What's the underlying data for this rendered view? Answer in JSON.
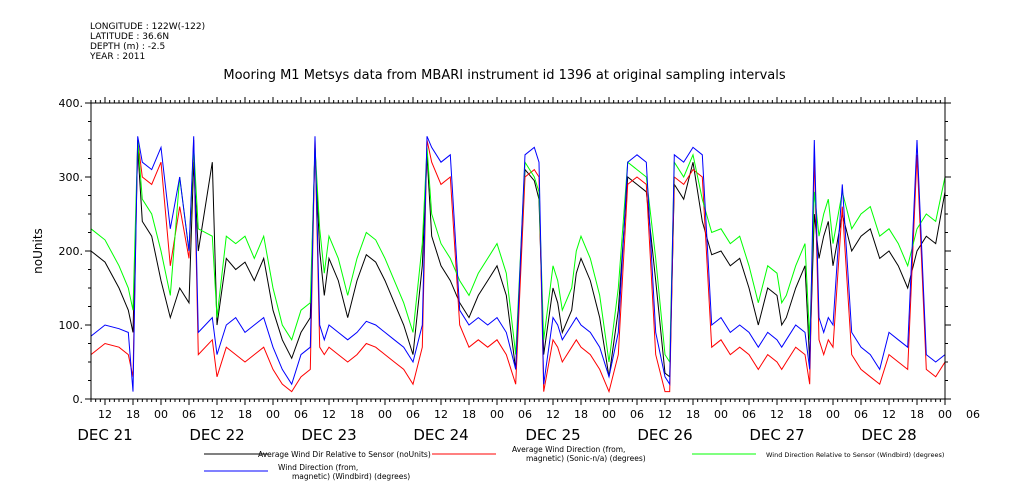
{
  "header": {
    "longitude": "LONGITUDE : 122W(-122)",
    "latitude": "LATITUDE : 36.6N",
    "depth": "DEPTH (m) : -2.5",
    "year": "YEAR : 2011"
  },
  "chart_data": {
    "type": "line",
    "title": "Mooring M1 Metsys data from MBARI instrument id 1396 at original sampling intervals",
    "ylabel": "noUnits",
    "ylim": [
      0,
      400
    ],
    "yticks": [
      "0.",
      "100.",
      "200.",
      "300.",
      "400."
    ],
    "xlim": [
      9,
      192
    ],
    "hour_tick_labels": [
      "12",
      "18",
      "00",
      "06",
      "12",
      "18",
      "00",
      "06",
      "12",
      "18",
      "00",
      "06",
      "12",
      "18",
      "00",
      "06",
      "12",
      "18",
      "00",
      "06",
      "12",
      "18",
      "00",
      "06",
      "12",
      "18",
      "00",
      "06",
      "12",
      "18",
      "00",
      "06"
    ],
    "day_labels": [
      "DEC 21",
      "DEC 22",
      "DEC 23",
      "DEC 24",
      "DEC 25",
      "DEC 26",
      "DEC 27",
      "DEC 28"
    ],
    "series": [
      {
        "name": "Average Wind Dir Relative to Sensor (noUnits)",
        "color": "#000000",
        "x": [
          9,
          12,
          15,
          17,
          18,
          19,
          20,
          22,
          24,
          26,
          28,
          30,
          31,
          32,
          35,
          36,
          38,
          40,
          42,
          44,
          46,
          48,
          50,
          52,
          54,
          56,
          57,
          58,
          59,
          60,
          62,
          64,
          66,
          68,
          70,
          72,
          74,
          76,
          78,
          80,
          81,
          82,
          84,
          86,
          88,
          90,
          92,
          94,
          96,
          98,
          100,
          102,
          104,
          105,
          106,
          108,
          109,
          110,
          112,
          113,
          114,
          116,
          118,
          120,
          122,
          124,
          126,
          128,
          130,
          132,
          133,
          134,
          136,
          138,
          140,
          142,
          144,
          146,
          148,
          150,
          152,
          154,
          156,
          157,
          158,
          160,
          162,
          163,
          164,
          165,
          166,
          167,
          168,
          170,
          172,
          174,
          176,
          178,
          180,
          182,
          184,
          186,
          188,
          190,
          192
        ],
        "y": [
          200,
          185,
          150,
          120,
          90,
          340,
          240,
          220,
          160,
          110,
          150,
          130,
          320,
          200,
          320,
          100,
          190,
          175,
          185,
          160,
          190,
          120,
          80,
          55,
          90,
          110,
          340,
          200,
          140,
          190,
          160,
          110,
          160,
          195,
          185,
          160,
          130,
          100,
          60,
          180,
          330,
          220,
          180,
          160,
          130,
          110,
          140,
          160,
          180,
          140,
          40,
          310,
          295,
          270,
          60,
          150,
          130,
          90,
          120,
          170,
          190,
          160,
          110,
          30,
          120,
          300,
          290,
          280,
          160,
          35,
          30,
          290,
          270,
          320,
          240,
          195,
          200,
          180,
          190,
          150,
          100,
          150,
          140,
          100,
          110,
          150,
          180,
          50,
          250,
          190,
          220,
          240,
          180,
          250,
          200,
          220,
          230,
          190,
          200,
          180,
          150,
          200,
          220,
          210,
          280
        ]
      },
      {
        "name": "Average Wind Direction (from, magnetic) (Sonic-n/a) (degrees)",
        "color": "#ff0000",
        "x": [
          9,
          12,
          15,
          17,
          18,
          19,
          20,
          22,
          24,
          26,
          28,
          30,
          31,
          32,
          35,
          36,
          38,
          40,
          42,
          44,
          46,
          48,
          50,
          52,
          54,
          56,
          57,
          58,
          59,
          60,
          62,
          64,
          66,
          68,
          70,
          72,
          74,
          76,
          78,
          80,
          81,
          82,
          84,
          86,
          88,
          90,
          92,
          94,
          96,
          98,
          100,
          102,
          104,
          105,
          106,
          108,
          109,
          110,
          112,
          113,
          114,
          116,
          118,
          120,
          122,
          124,
          126,
          128,
          130,
          132,
          133,
          134,
          136,
          138,
          140,
          142,
          144,
          146,
          148,
          150,
          152,
          154,
          156,
          157,
          158,
          160,
          162,
          163,
          164,
          165,
          166,
          167,
          168,
          170,
          172,
          174,
          176,
          178,
          180,
          182,
          184,
          186,
          188,
          190,
          192
        ],
        "y": [
          60,
          75,
          70,
          60,
          30,
          350,
          300,
          290,
          320,
          180,
          260,
          190,
          350,
          60,
          80,
          30,
          70,
          60,
          50,
          60,
          70,
          40,
          20,
          10,
          30,
          40,
          350,
          70,
          60,
          70,
          60,
          50,
          60,
          75,
          70,
          60,
          50,
          40,
          20,
          70,
          350,
          320,
          290,
          300,
          100,
          70,
          80,
          70,
          80,
          60,
          20,
          300,
          310,
          300,
          10,
          80,
          70,
          50,
          70,
          80,
          70,
          60,
          40,
          10,
          60,
          290,
          300,
          290,
          60,
          10,
          10,
          300,
          290,
          310,
          300,
          70,
          80,
          60,
          70,
          60,
          40,
          60,
          50,
          40,
          50,
          70,
          60,
          20,
          330,
          80,
          60,
          80,
          70,
          260,
          60,
          40,
          30,
          20,
          60,
          50,
          40,
          330,
          40,
          30,
          50
        ]
      },
      {
        "name": "Wind Direction Relative to Sensor (Windbird) (degrees)",
        "color": "#00ff00",
        "x": [
          9,
          12,
          15,
          17,
          18,
          19,
          20,
          22,
          24,
          26,
          28,
          30,
          31,
          32,
          35,
          36,
          38,
          40,
          42,
          44,
          46,
          48,
          50,
          52,
          54,
          56,
          57,
          58,
          59,
          60,
          62,
          64,
          66,
          68,
          70,
          72,
          74,
          76,
          78,
          80,
          81,
          82,
          84,
          86,
          88,
          90,
          92,
          94,
          96,
          98,
          100,
          102,
          104,
          105,
          106,
          108,
          109,
          110,
          112,
          113,
          114,
          116,
          118,
          120,
          122,
          124,
          126,
          128,
          130,
          132,
          133,
          134,
          136,
          138,
          140,
          142,
          144,
          146,
          148,
          150,
          152,
          154,
          156,
          157,
          158,
          160,
          162,
          163,
          164,
          165,
          166,
          167,
          168,
          170,
          172,
          174,
          176,
          178,
          180,
          182,
          184,
          186,
          188,
          190,
          192
        ],
        "y": [
          230,
          215,
          180,
          150,
          120,
          350,
          270,
          250,
          200,
          140,
          300,
          200,
          340,
          230,
          220,
          110,
          220,
          210,
          220,
          190,
          220,
          150,
          100,
          80,
          120,
          130,
          340,
          230,
          170,
          220,
          190,
          140,
          190,
          225,
          215,
          190,
          160,
          130,
          90,
          210,
          340,
          250,
          210,
          190,
          160,
          140,
          170,
          190,
          210,
          170,
          60,
          320,
          300,
          280,
          80,
          180,
          160,
          120,
          150,
          200,
          220,
          190,
          140,
          50,
          150,
          320,
          310,
          300,
          190,
          60,
          50,
          320,
          300,
          330,
          270,
          225,
          230,
          210,
          220,
          180,
          130,
          180,
          170,
          130,
          140,
          180,
          210,
          80,
          280,
          220,
          250,
          270,
          210,
          280,
          230,
          250,
          260,
          220,
          230,
          210,
          180,
          230,
          250,
          240,
          300
        ]
      },
      {
        "name": "Wind Direction (from, magnetic) (Windbird) (degrees)",
        "color": "#0000ff",
        "x": [
          9,
          12,
          15,
          17,
          18,
          19,
          20,
          22,
          24,
          26,
          28,
          30,
          31,
          32,
          35,
          36,
          38,
          40,
          42,
          44,
          46,
          48,
          50,
          52,
          54,
          56,
          57,
          58,
          59,
          60,
          62,
          64,
          66,
          68,
          70,
          72,
          74,
          76,
          78,
          80,
          81,
          82,
          84,
          86,
          88,
          90,
          92,
          94,
          96,
          98,
          100,
          102,
          104,
          105,
          106,
          108,
          109,
          110,
          112,
          113,
          114,
          116,
          118,
          120,
          122,
          124,
          126,
          128,
          130,
          132,
          133,
          134,
          136,
          138,
          140,
          142,
          144,
          146,
          148,
          150,
          152,
          154,
          156,
          157,
          158,
          160,
          162,
          163,
          164,
          165,
          166,
          167,
          168,
          170,
          172,
          174,
          176,
          178,
          180,
          182,
          184,
          186,
          188,
          190,
          192
        ],
        "y": [
          85,
          100,
          95,
          90,
          10,
          355,
          320,
          310,
          340,
          230,
          300,
          200,
          355,
          90,
          110,
          60,
          100,
          110,
          90,
          100,
          110,
          70,
          40,
          20,
          60,
          70,
          355,
          100,
          80,
          100,
          90,
          80,
          90,
          105,
          100,
          90,
          80,
          70,
          50,
          100,
          355,
          340,
          320,
          330,
          120,
          100,
          110,
          100,
          110,
          90,
          40,
          330,
          340,
          320,
          20,
          110,
          100,
          80,
          100,
          110,
          100,
          90,
          70,
          30,
          90,
          320,
          330,
          320,
          90,
          30,
          20,
          330,
          320,
          340,
          330,
          100,
          110,
          90,
          100,
          90,
          70,
          90,
          80,
          70,
          80,
          100,
          90,
          40,
          350,
          110,
          90,
          110,
          100,
          290,
          90,
          70,
          60,
          40,
          90,
          80,
          70,
          350,
          60,
          50,
          60
        ]
      }
    ]
  }
}
